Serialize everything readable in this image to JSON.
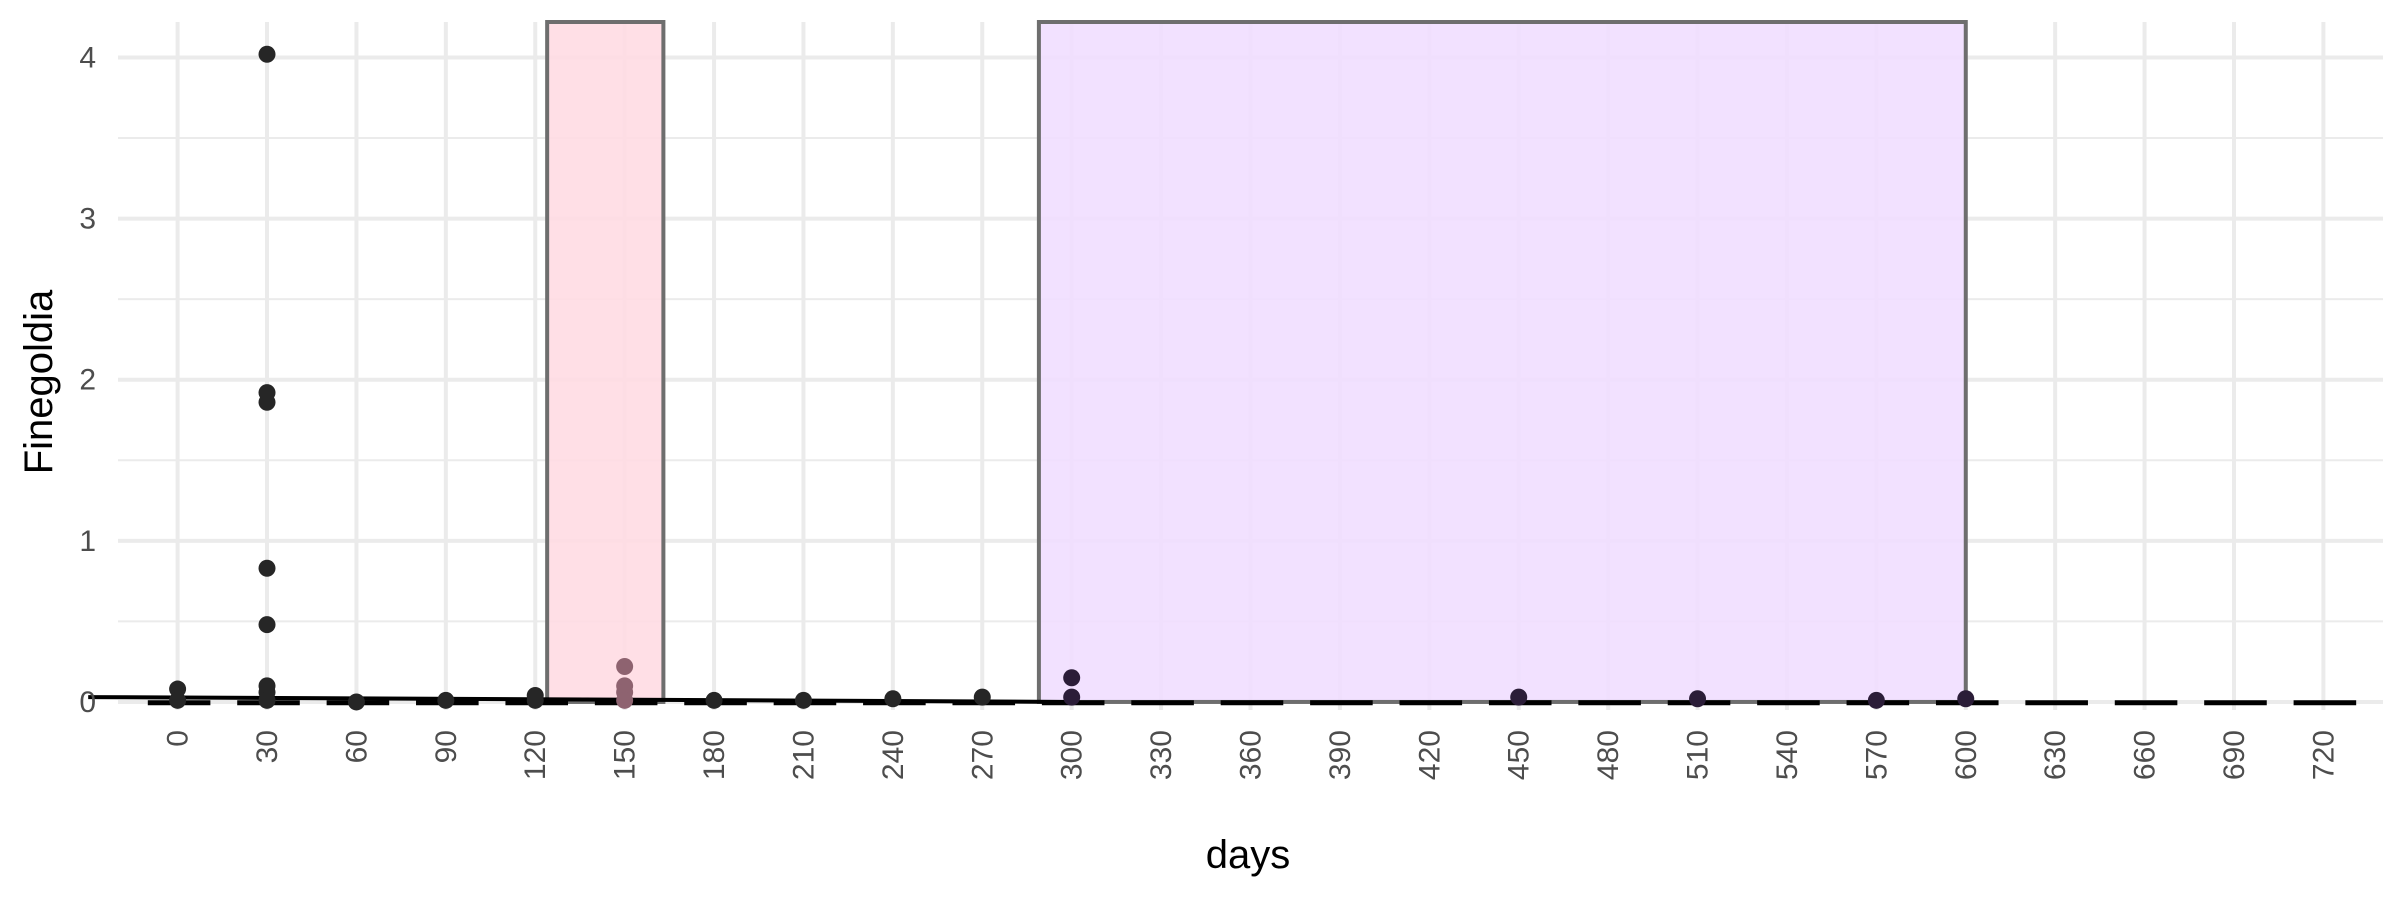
{
  "chart_data": {
    "type": "scatter",
    "title": "",
    "xlabel": "days",
    "ylabel": "Finegoldia",
    "xlim": [
      -20,
      740
    ],
    "ylim": [
      -0.05,
      4.22
    ],
    "x_ticks": [
      "0",
      "30",
      "60",
      "90",
      "120",
      "150",
      "180",
      "210",
      "240",
      "270",
      "300",
      "330",
      "360",
      "390",
      "420",
      "450",
      "480",
      "510",
      "540",
      "570",
      "600",
      "630",
      "660",
      "690",
      "720"
    ],
    "y_ticks": [
      "0",
      "1",
      "2",
      "3",
      "4"
    ],
    "grid": true,
    "legend": "none",
    "shaded_periods": [
      {
        "x_start": 124,
        "x_end": 163,
        "color": "#ffdbe2"
      },
      {
        "x_start": 289,
        "x_end": 600,
        "color": "#f0ddff"
      }
    ],
    "points": [
      {
        "x": 0,
        "y": 0.08,
        "color": "#262626"
      },
      {
        "x": 0,
        "y": 0.01,
        "color": "#262626"
      },
      {
        "x": 30,
        "y": 4.02,
        "color": "#262626"
      },
      {
        "x": 30,
        "y": 1.92,
        "color": "#262626"
      },
      {
        "x": 30,
        "y": 1.86,
        "color": "#262626"
      },
      {
        "x": 30,
        "y": 0.83,
        "color": "#262626"
      },
      {
        "x": 30,
        "y": 0.48,
        "color": "#262626"
      },
      {
        "x": 30,
        "y": 0.1,
        "color": "#262626"
      },
      {
        "x": 30,
        "y": 0.06,
        "color": "#262626"
      },
      {
        "x": 30,
        "y": 0.01,
        "color": "#262626"
      },
      {
        "x": 60,
        "y": 0.0,
        "color": "#262626"
      },
      {
        "x": 90,
        "y": 0.01,
        "color": "#262626"
      },
      {
        "x": 120,
        "y": 0.04,
        "color": "#262626"
      },
      {
        "x": 120,
        "y": 0.01,
        "color": "#262626"
      },
      {
        "x": 150,
        "y": 0.22,
        "color": "#8e6370"
      },
      {
        "x": 150,
        "y": 0.1,
        "color": "#8e6370"
      },
      {
        "x": 150,
        "y": 0.06,
        "color": "#8e6370"
      },
      {
        "x": 150,
        "y": 0.01,
        "color": "#8e6370"
      },
      {
        "x": 180,
        "y": 0.01,
        "color": "#262626"
      },
      {
        "x": 210,
        "y": 0.01,
        "color": "#262626"
      },
      {
        "x": 240,
        "y": 0.02,
        "color": "#262626"
      },
      {
        "x": 270,
        "y": 0.03,
        "color": "#262626"
      },
      {
        "x": 300,
        "y": 0.15,
        "color": "#2b1d38"
      },
      {
        "x": 300,
        "y": 0.03,
        "color": "#2b1d38"
      },
      {
        "x": 450,
        "y": 0.03,
        "color": "#2b1d38"
      },
      {
        "x": 510,
        "y": 0.02,
        "color": "#2b1d38"
      },
      {
        "x": 570,
        "y": 0.01,
        "color": "#2b1d38"
      },
      {
        "x": 600,
        "y": 0.02,
        "color": "#2b1d38"
      }
    ],
    "trend_line": {
      "x": [
        -30,
        300
      ],
      "y": [
        0.03,
        0.0
      ],
      "color": "#000000",
      "style": "solid"
    },
    "trend_dashes": {
      "x_start": -10,
      "x_end": 732,
      "y": -0.005,
      "step": 30,
      "color": "#000000",
      "style": "dashed"
    },
    "colors": {
      "grid": "#ebebeb",
      "box_stroke": "#6e6e6e",
      "tick_text": "#4d4d4d",
      "axis_text": "#000000"
    }
  }
}
